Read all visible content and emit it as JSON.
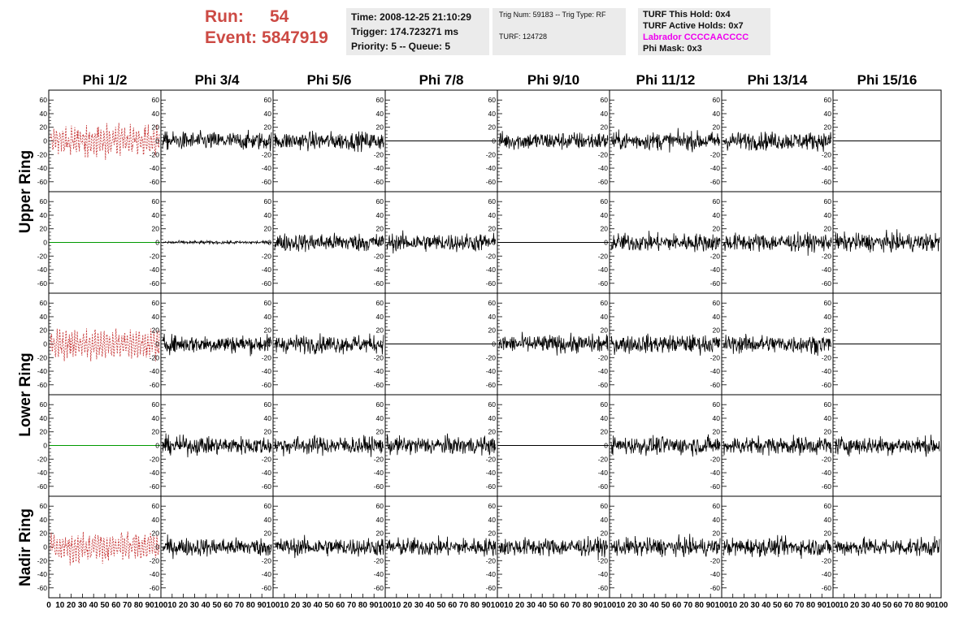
{
  "header": {
    "run_label": "Run:",
    "run_value": "54",
    "event_label": "Event:",
    "event_value": "5847919",
    "time": "Time: 2008-12-25 21:10:29",
    "trigger": "Trigger: 174.723271 ms",
    "priority": "Priority: 5 -- Queue: 5",
    "trig_num": "Trig Num: 59183 -- Trig Type: RF",
    "turf": "TURF: 124728",
    "turf_this_hold": "TURF This Hold: 0x4",
    "turf_active_holds": "TURF Active Holds: 0x7",
    "labrador": "Labrador CCCCAACCCC",
    "phi_mask": "Phi Mask: 0x3"
  },
  "colors": {
    "header_red": "#cc4a44",
    "labrador": "#ee00ee",
    "trace": "#000000",
    "masked_trace": "#c83c3c",
    "flat_green": "#009900"
  },
  "chart_data": {
    "type": "line",
    "column_titles": [
      "Phi 1/2",
      "Phi 3/4",
      "Phi 5/6",
      "Phi 7/8",
      "Phi 9/10",
      "Phi 11/12",
      "Phi 13/14",
      "Phi 15/16"
    ],
    "ring_titles": [
      "Upper Ring",
      "Lower Ring",
      "Nadir Ring"
    ],
    "rows": 5,
    "ylim": [
      -65,
      65
    ],
    "xlim": [
      0,
      100
    ],
    "yticks": [
      60,
      40,
      20,
      0,
      -20,
      -40,
      -60
    ],
    "xticks": [
      "0",
      "10",
      "20",
      "30",
      "40",
      "50",
      "60",
      "70",
      "80",
      "90",
      "100"
    ],
    "panels": [
      [
        "masked",
        "trace",
        "trace",
        "flat",
        "trace",
        "trace",
        "trace",
        "flat"
      ],
      [
        "flat_green",
        "small",
        "trace",
        "trace",
        "flat",
        "trace",
        "trace",
        "trace"
      ],
      [
        "masked",
        "trace",
        "trace",
        "flat",
        "trace",
        "trace",
        "trace",
        "flat"
      ],
      [
        "flat_green",
        "trace",
        "trace",
        "trace",
        "flat",
        "trace",
        "trace",
        "trace"
      ],
      [
        "masked",
        "trace",
        "trace",
        "trace",
        "trace",
        "trace",
        "trace",
        "trace"
      ]
    ]
  }
}
